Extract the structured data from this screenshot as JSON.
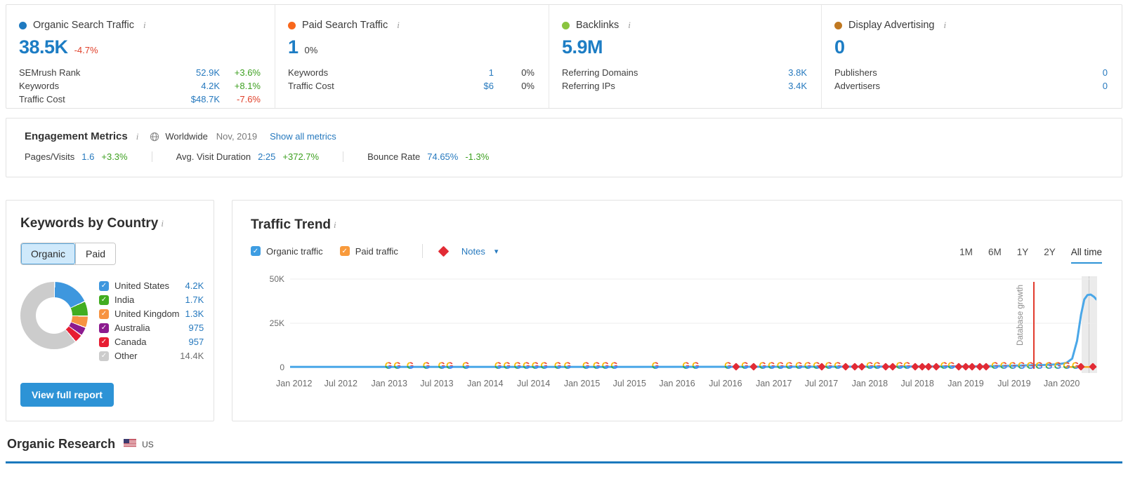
{
  "colors": {
    "accent_blue": "#2679be",
    "big_value_blue": "#1d7dc4",
    "positive_green": "#3ea021",
    "negative_red": "#e0402a",
    "annotation_red": "#e23b2e",
    "section_rule_blue": "#1b79bd",
    "button_blue": "#2d93d6"
  },
  "cards": [
    {
      "title": "Organic Search Traffic",
      "dot_color": "#1f7ac0",
      "value": "38.5K",
      "delta": "-4.7%",
      "delta_color": "red",
      "rows": [
        {
          "label": "SEMrush Rank",
          "value": "52.9K",
          "delta": "+3.6%",
          "delta_color": "green"
        },
        {
          "label": "Keywords",
          "value": "4.2K",
          "delta": "+8.1%",
          "delta_color": "green"
        },
        {
          "label": "Traffic Cost",
          "value": "$48.7K",
          "delta": "-7.6%",
          "delta_color": "red"
        }
      ]
    },
    {
      "title": "Paid Search Traffic",
      "dot_color": "#f8671c",
      "value": "1",
      "delta": "0%",
      "delta_color": "plain",
      "rows": [
        {
          "label": "Keywords",
          "value": "1",
          "delta": "0%",
          "delta_color": "plain"
        },
        {
          "label": "Traffic Cost",
          "value": "$6",
          "delta": "0%",
          "delta_color": "plain"
        }
      ]
    },
    {
      "title": "Backlinks",
      "dot_color": "#8ac43f",
      "value": "5.9M",
      "delta": "",
      "delta_color": "plain",
      "rows": [
        {
          "label": "Referring Domains",
          "value": "3.8K",
          "delta": "",
          "delta_color": "plain"
        },
        {
          "label": "Referring IPs",
          "value": "3.4K",
          "delta": "",
          "delta_color": "plain"
        }
      ]
    },
    {
      "title": "Display Advertising",
      "dot_color": "#c07821",
      "value": "0",
      "delta": "",
      "delta_color": "plain",
      "rows": [
        {
          "label": "Publishers",
          "value": "0",
          "delta": "",
          "delta_color": "plain"
        },
        {
          "label": "Advertisers",
          "value": "0",
          "delta": "",
          "delta_color": "plain"
        }
      ]
    }
  ],
  "engagement": {
    "title": "Engagement Metrics",
    "scope": "Worldwide",
    "period": "Nov, 2019",
    "link": "Show all metrics",
    "metrics": [
      {
        "label": "Pages/Visits",
        "value": "1.6",
        "delta": "+3.3%",
        "delta_color": "green"
      },
      {
        "label": "Avg. Visit Duration",
        "value": "2:25",
        "delta": "+372.7%",
        "delta_color": "green"
      },
      {
        "label": "Bounce Rate",
        "value": "74.65%",
        "delta": "-1.3%",
        "delta_color": "green"
      }
    ]
  },
  "keywords_by_country": {
    "title": "Keywords by Country",
    "tabs": [
      "Organic",
      "Paid"
    ],
    "selected_tab": "Organic",
    "button": "View full report",
    "countries": [
      {
        "label": "United States",
        "value": "4.2K",
        "color": "#3e97de",
        "checked": true,
        "muted": false
      },
      {
        "label": "India",
        "value": "1.7K",
        "color": "#42ad21",
        "checked": true,
        "muted": false
      },
      {
        "label": "United Kingdom",
        "value": "1.3K",
        "color": "#f79342",
        "checked": true,
        "muted": false
      },
      {
        "label": "Australia",
        "value": "975",
        "color": "#8c1b8f",
        "checked": true,
        "muted": false
      },
      {
        "label": "Canada",
        "value": "957",
        "color": "#e71d32",
        "checked": true,
        "muted": false
      },
      {
        "label": "Other",
        "value": "14.4K",
        "color": "#cccccc",
        "checked": true,
        "muted": true
      }
    ]
  },
  "traffic_trend": {
    "title": "Traffic Trend",
    "legend": [
      {
        "label": "Organic traffic",
        "color": "#3e9de2",
        "checked": true
      },
      {
        "label": "Paid traffic",
        "color": "#f89a3c",
        "checked": true
      }
    ],
    "notes_label": "Notes",
    "ranges": [
      "1M",
      "6M",
      "1Y",
      "2Y",
      "All time"
    ],
    "selected_range": "All time"
  },
  "chart_data": [
    {
      "type": "pie",
      "title": "Keywords by Country (Organic)",
      "labels": [
        "United States",
        "India",
        "United Kingdom",
        "Australia",
        "Canada",
        "Other"
      ],
      "values": [
        4200,
        1700,
        1300,
        975,
        957,
        14400
      ],
      "display_values": [
        "4.2K",
        "1.7K",
        "1.3K",
        "975",
        "957",
        "14.4K"
      ],
      "colors": [
        "#3e97de",
        "#42ad21",
        "#f79342",
        "#8c1b8f",
        "#e71d32",
        "#cccccc"
      ],
      "donut": true,
      "legend_position": "right"
    },
    {
      "type": "line",
      "title": "Traffic Trend",
      "ylim": [
        0,
        50000
      ],
      "y_ticks": [
        "50K",
        "25K",
        "0"
      ],
      "grid": true,
      "x_labels": [
        "Jan 2012",
        "Jul 2012",
        "Jan 2013",
        "Jul 2013",
        "Jan 2014",
        "Jul 2014",
        "Jan 2015",
        "Jul 2015",
        "Jan 2016",
        "Jul 2016",
        "Jan 2017",
        "Jul 2017",
        "Jan 2018",
        "Jul 2018",
        "Jan 2019",
        "Jul 2019",
        "Jan 2020"
      ],
      "x_label_pos": [
        0.5,
        6.3,
        12.3,
        18.2,
        24.2,
        30.2,
        36.2,
        42.1,
        48.0,
        54.0,
        60.0,
        65.9,
        71.9,
        77.8,
        83.8,
        89.8,
        95.7
      ],
      "series": [
        {
          "name": "Paid traffic",
          "color": "#f5a623",
          "points": [
            [
              96.2,
              0.25
            ],
            [
              100,
              0.25
            ]
          ]
        },
        {
          "name": "Organic traffic",
          "color": "#4aa7e8",
          "points": [
            [
              0,
              0.3
            ],
            [
              20,
              0.3
            ],
            [
              40,
              0.3
            ],
            [
              55,
              0.35
            ],
            [
              70,
              0.45
            ],
            [
              80,
              0.55
            ],
            [
              85,
              0.65
            ],
            [
              88,
              0.8
            ],
            [
              91,
              1.1
            ],
            [
              93.5,
              1.4
            ],
            [
              95.3,
              1.8
            ],
            [
              96.3,
              2.6
            ],
            [
              97.0,
              5
            ],
            [
              97.6,
              15
            ],
            [
              98.1,
              30
            ],
            [
              98.5,
              38.5
            ],
            [
              98.9,
              41
            ],
            [
              99.3,
              41.2
            ],
            [
              99.7,
              40
            ],
            [
              100,
              38.5
            ]
          ],
          "unit": "K"
        }
      ],
      "annotation": {
        "label": "Database growth",
        "pos": 92.2,
        "color": "#e23b2e"
      },
      "marker_types": {
        "g": "google-update",
        "n": "note"
      },
      "markers": [
        [
          12.2,
          "g"
        ],
        [
          13.3,
          "g"
        ],
        [
          14.9,
          "g"
        ],
        [
          16.9,
          "g"
        ],
        [
          18.8,
          "g"
        ],
        [
          19.8,
          "g"
        ],
        [
          21.8,
          "g"
        ],
        [
          25.8,
          "g"
        ],
        [
          26.9,
          "g"
        ],
        [
          28.2,
          "g"
        ],
        [
          29.3,
          "g"
        ],
        [
          30.4,
          "g"
        ],
        [
          31.5,
          "g"
        ],
        [
          33.2,
          "g"
        ],
        [
          34.4,
          "g"
        ],
        [
          36.7,
          "g"
        ],
        [
          38.0,
          "g"
        ],
        [
          39.1,
          "g"
        ],
        [
          40.2,
          "g"
        ],
        [
          45.3,
          "g"
        ],
        [
          49.1,
          "g"
        ],
        [
          50.3,
          "g"
        ],
        [
          54.3,
          "g"
        ],
        [
          55.3,
          "n"
        ],
        [
          56.4,
          "g"
        ],
        [
          57.5,
          "n"
        ],
        [
          58.6,
          "g"
        ],
        [
          59.7,
          "g"
        ],
        [
          60.8,
          "g"
        ],
        [
          61.9,
          "g"
        ],
        [
          63.1,
          "g"
        ],
        [
          64.2,
          "g"
        ],
        [
          65.3,
          "g"
        ],
        [
          65.9,
          "n"
        ],
        [
          66.8,
          "g"
        ],
        [
          67.9,
          "g"
        ],
        [
          68.9,
          "n"
        ],
        [
          70.0,
          "n"
        ],
        [
          70.9,
          "n"
        ],
        [
          71.9,
          "g"
        ],
        [
          72.8,
          "g"
        ],
        [
          73.9,
          "n"
        ],
        [
          74.7,
          "n"
        ],
        [
          75.6,
          "g"
        ],
        [
          76.5,
          "g"
        ],
        [
          77.5,
          "n"
        ],
        [
          78.4,
          "n"
        ],
        [
          79.2,
          "n"
        ],
        [
          80.1,
          "n"
        ],
        [
          81.1,
          "g"
        ],
        [
          82.0,
          "g"
        ],
        [
          82.9,
          "n"
        ],
        [
          83.8,
          "n"
        ],
        [
          84.6,
          "n"
        ],
        [
          85.5,
          "n"
        ],
        [
          86.3,
          "n"
        ],
        [
          87.4,
          "g"
        ],
        [
          88.5,
          "g"
        ],
        [
          89.6,
          "g"
        ],
        [
          90.7,
          "g"
        ],
        [
          91.8,
          "g"
        ],
        [
          92.9,
          "g"
        ],
        [
          94.1,
          "g"
        ],
        [
          95.2,
          "g"
        ],
        [
          96.3,
          "g"
        ],
        [
          97.4,
          "g"
        ],
        [
          98.1,
          "n"
        ],
        [
          99.6,
          "n"
        ]
      ]
    }
  ],
  "organic_research": {
    "title": "Organic Research",
    "region": "US"
  }
}
